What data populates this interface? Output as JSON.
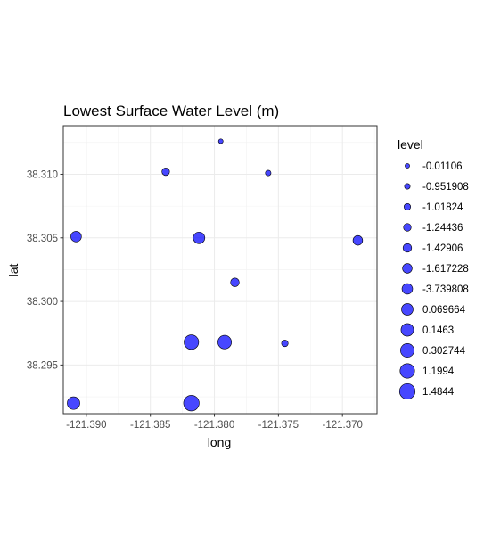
{
  "chart_data": {
    "type": "scatter",
    "title": "Lowest Surface Water Level (m)",
    "xlabel": "long",
    "ylabel": "lat",
    "xlim": [
      -121.3918,
      -121.3673
    ],
    "ylim": [
      38.29117,
      38.31382
    ],
    "x_ticks": [
      -121.39,
      -121.385,
      -121.38,
      -121.375,
      -121.37
    ],
    "x_tick_labels": [
      "-121.390",
      "-121.385",
      "-121.380",
      "-121.375",
      "-121.370"
    ],
    "y_ticks": [
      38.295,
      38.3,
      38.305,
      38.31
    ],
    "y_tick_labels": [
      "38.295",
      "38.300",
      "38.305",
      "38.310"
    ],
    "grid": true,
    "legend_title": "level",
    "legend_position": "right",
    "point_color": "#0000ff",
    "legend": [
      {
        "label": "-0.01106",
        "rank": 1
      },
      {
        "label": "-0.951908",
        "rank": 2
      },
      {
        "label": "-1.01824",
        "rank": 3
      },
      {
        "label": "-1.24436",
        "rank": 4
      },
      {
        "label": "-1.42906",
        "rank": 5
      },
      {
        "label": "-1.617228",
        "rank": 6
      },
      {
        "label": "-3.739808",
        "rank": 7
      },
      {
        "label": "0.069664",
        "rank": 8
      },
      {
        "label": "0.1463",
        "rank": 9
      },
      {
        "label": "0.302744",
        "rank": 10
      },
      {
        "label": "1.1994",
        "rank": 11
      },
      {
        "label": "1.4844",
        "rank": 12
      }
    ],
    "points": [
      {
        "long": -121.3795,
        "lat": 38.3126,
        "level": "-0.01106"
      },
      {
        "long": -121.3758,
        "lat": 38.3101,
        "level": "-0.951908"
      },
      {
        "long": -121.3745,
        "lat": 38.2967,
        "level": "-1.01824"
      },
      {
        "long": -121.3838,
        "lat": 38.3102,
        "level": "-1.24436"
      },
      {
        "long": -121.3784,
        "lat": 38.3015,
        "level": "-1.42906"
      },
      {
        "long": -121.3688,
        "lat": 38.3048,
        "level": "-1.617228"
      },
      {
        "long": -121.3908,
        "lat": 38.3051,
        "level": "-3.739808"
      },
      {
        "long": -121.3812,
        "lat": 38.305,
        "level": "0.069664"
      },
      {
        "long": -121.391,
        "lat": 38.292,
        "level": "0.1463"
      },
      {
        "long": -121.3792,
        "lat": 38.2968,
        "level": "0.302744"
      },
      {
        "long": -121.3818,
        "lat": 38.2968,
        "level": "1.1994"
      },
      {
        "long": -121.3818,
        "lat": 38.292,
        "level": "1.4844"
      }
    ]
  }
}
